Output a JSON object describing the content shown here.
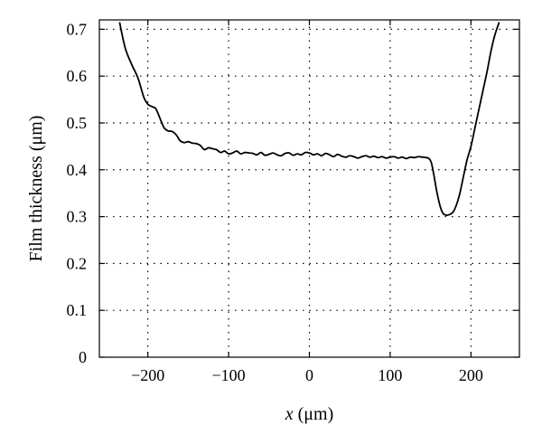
{
  "chart_data": {
    "type": "line",
    "title": "",
    "xlabel_var": "x",
    "xlabel_unit": " (μm)",
    "ylabel": "Film thickness (μm)",
    "xlim": [
      -260,
      260
    ],
    "ylim": [
      0,
      0.72
    ],
    "xticks": [
      -200,
      -100,
      0,
      100,
      200
    ],
    "xtick_labels": [
      "−200",
      "−100",
      "0",
      "100",
      "200"
    ],
    "yticks": [
      0,
      0.1,
      0.2,
      0.3,
      0.4,
      0.5,
      0.6,
      0.7
    ],
    "ytick_labels": [
      "0",
      "0.1",
      "0.2",
      "0.3",
      "0.4",
      "0.5",
      "0.6",
      "0.7"
    ],
    "grid": true,
    "series": [
      {
        "color": "#000000",
        "x": [
          -235,
          -228,
          -220,
          -212,
          -205,
          -200,
          -195,
          -190,
          -185,
          -180,
          -175,
          -170,
          -165,
          -160,
          -155,
          -150,
          -145,
          -140,
          -135,
          -130,
          -125,
          -120,
          -115,
          -110,
          -105,
          -100,
          -95,
          -90,
          -85,
          -80,
          -75,
          -70,
          -65,
          -60,
          -55,
          -50,
          -45,
          -40,
          -35,
          -30,
          -25,
          -20,
          -15,
          -10,
          -5,
          0,
          5,
          10,
          15,
          20,
          25,
          30,
          35,
          40,
          45,
          50,
          55,
          60,
          65,
          70,
          75,
          80,
          85,
          90,
          95,
          100,
          105,
          110,
          115,
          120,
          125,
          130,
          135,
          140,
          145,
          148,
          151,
          154,
          157,
          160,
          163,
          166,
          170,
          174,
          178,
          182,
          186,
          190,
          195,
          200,
          205,
          210,
          215,
          220,
          225,
          230,
          235
        ],
        "y": [
          0.715,
          0.66,
          0.625,
          0.595,
          0.555,
          0.54,
          0.535,
          0.53,
          0.51,
          0.49,
          0.483,
          0.482,
          0.475,
          0.462,
          0.458,
          0.46,
          0.457,
          0.456,
          0.452,
          0.443,
          0.447,
          0.445,
          0.443,
          0.437,
          0.44,
          0.434,
          0.436,
          0.44,
          0.434,
          0.437,
          0.436,
          0.435,
          0.432,
          0.437,
          0.431,
          0.433,
          0.436,
          0.432,
          0.43,
          0.435,
          0.436,
          0.431,
          0.434,
          0.432,
          0.437,
          0.436,
          0.432,
          0.434,
          0.43,
          0.435,
          0.432,
          0.428,
          0.433,
          0.429,
          0.427,
          0.43,
          0.428,
          0.425,
          0.428,
          0.43,
          0.427,
          0.429,
          0.426,
          0.428,
          0.425,
          0.427,
          0.428,
          0.425,
          0.427,
          0.424,
          0.427,
          0.426,
          0.428,
          0.427,
          0.426,
          0.424,
          0.415,
          0.39,
          0.36,
          0.335,
          0.316,
          0.306,
          0.303,
          0.305,
          0.31,
          0.325,
          0.348,
          0.38,
          0.42,
          0.45,
          0.49,
          0.53,
          0.57,
          0.61,
          0.655,
          0.69,
          0.715
        ]
      }
    ]
  }
}
